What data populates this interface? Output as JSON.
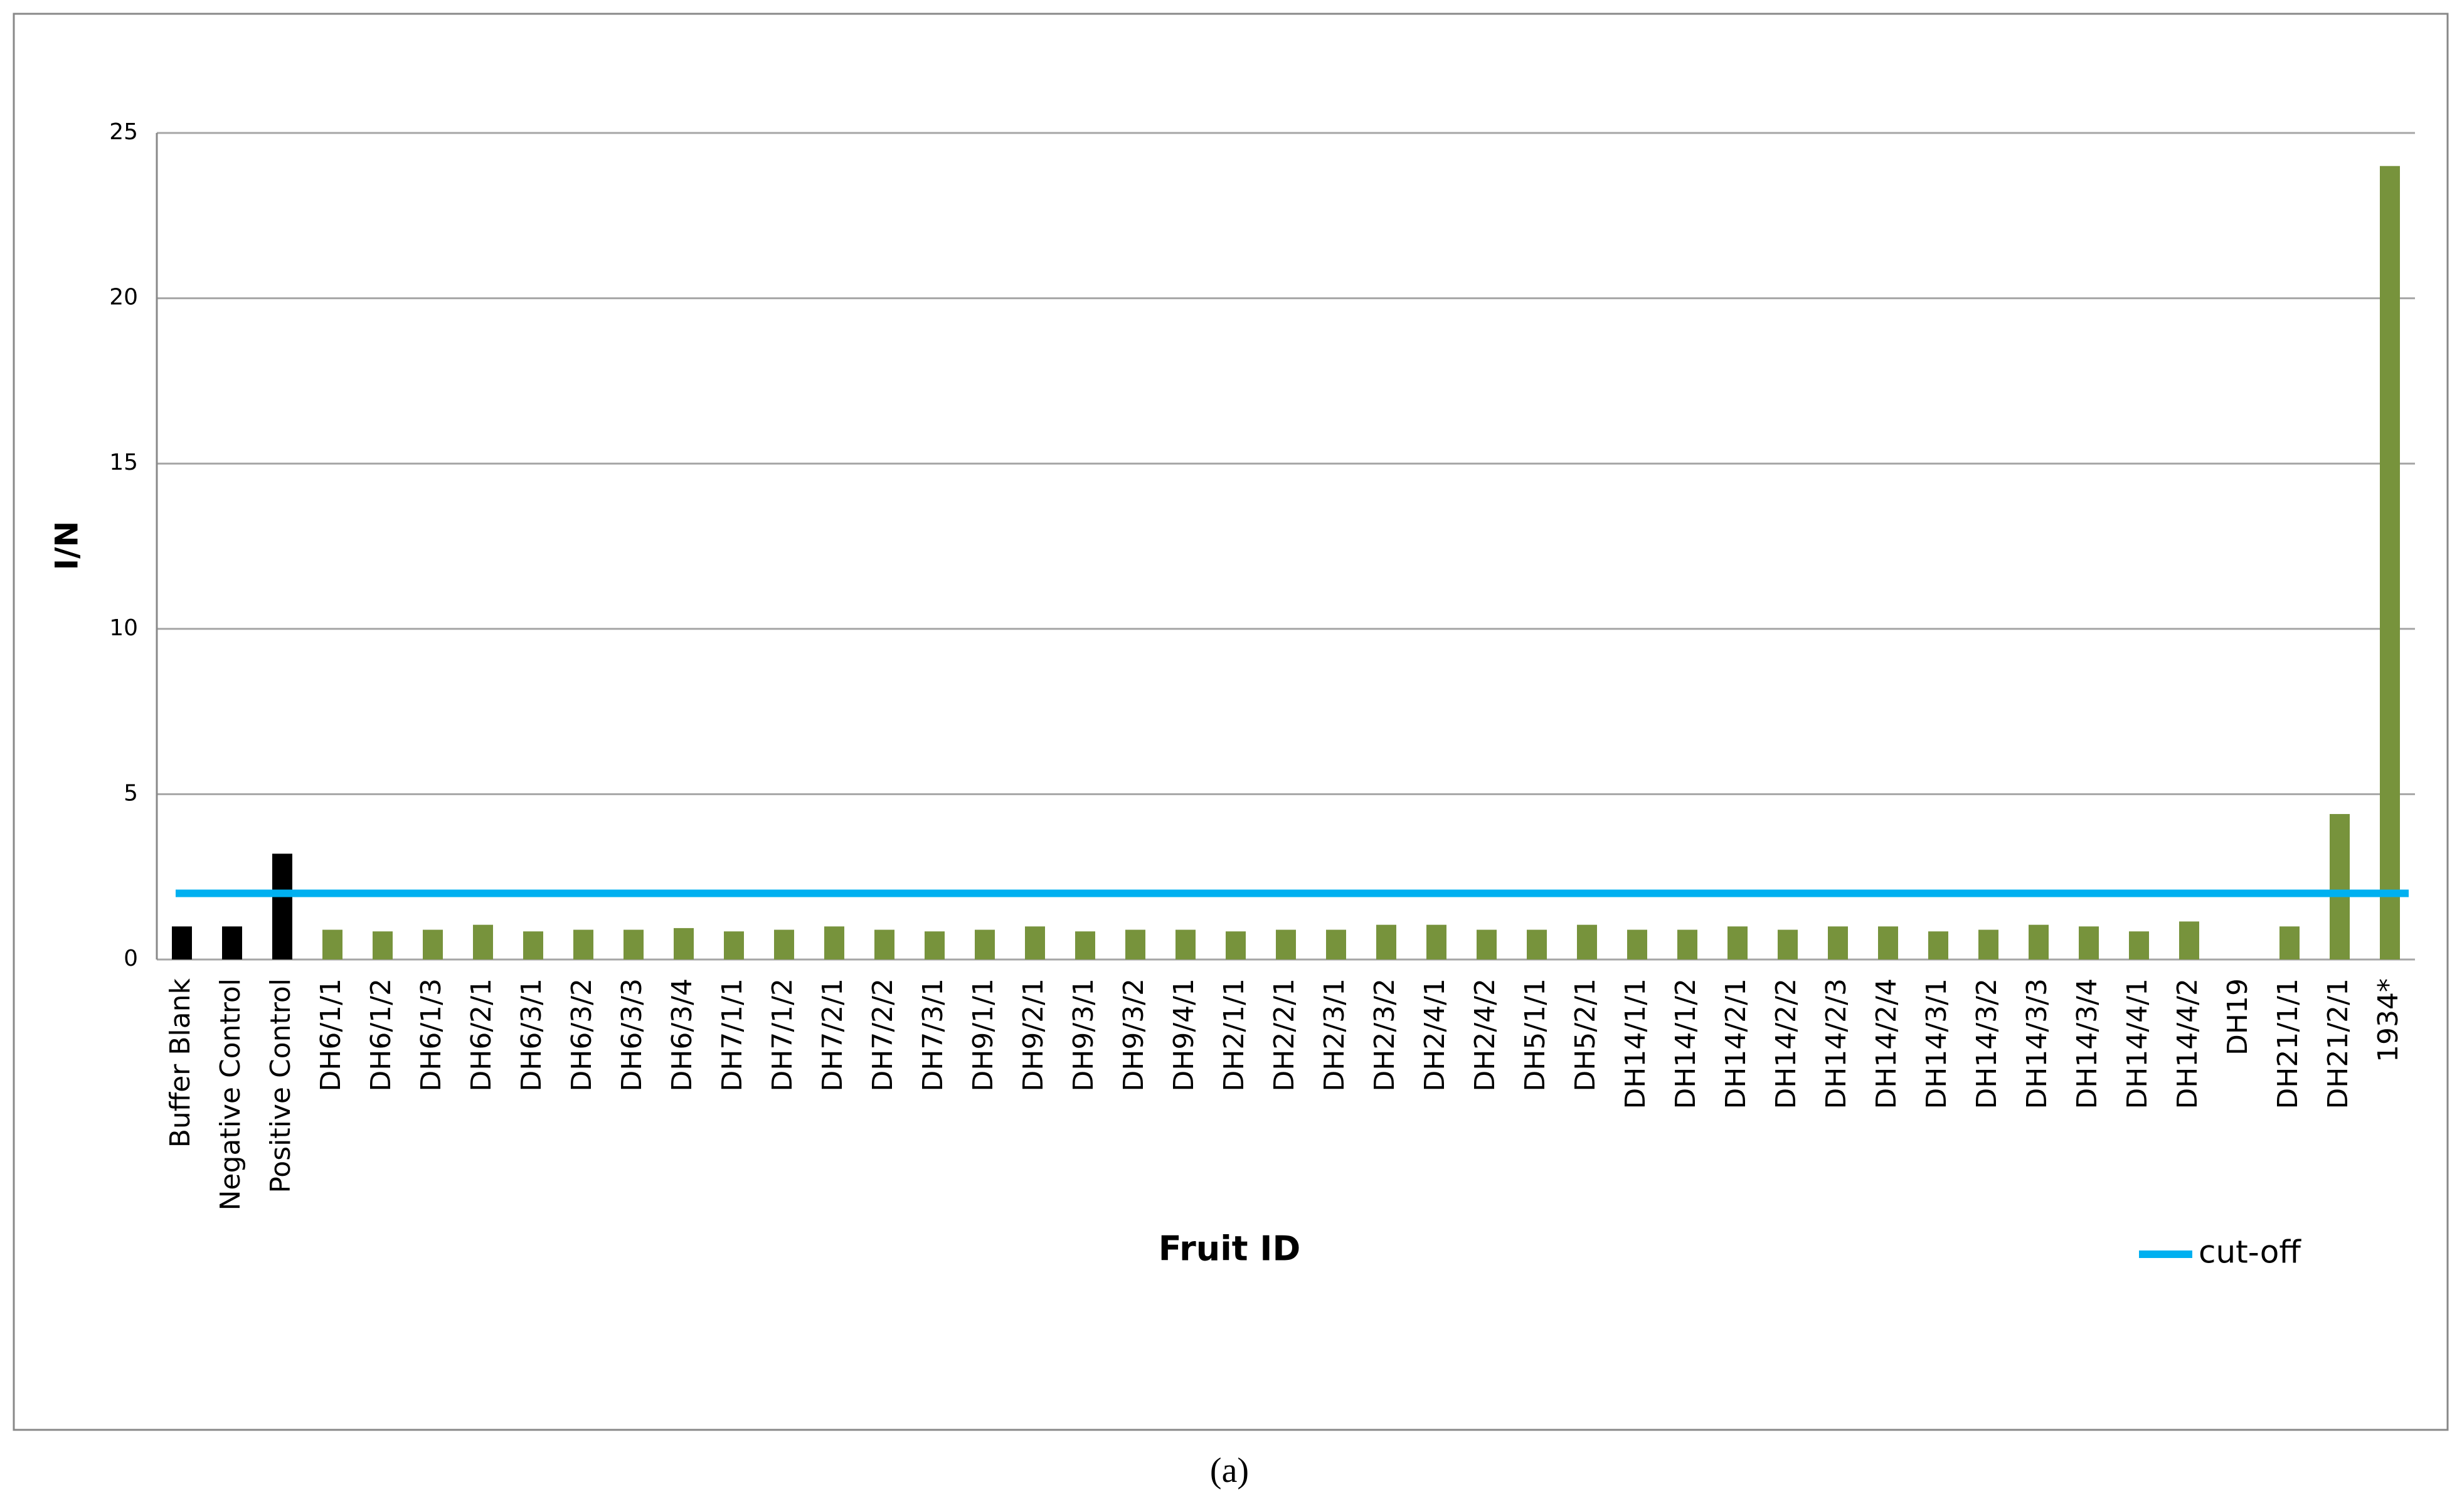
{
  "chart_data": {
    "type": "bar",
    "categories": [
      "Buffer Blank",
      "Negative Control",
      "Positive Control",
      "DH6/1/1",
      "DH6/1/2",
      "DH6/1/3",
      "DH6/2/1",
      "DH6/3/1",
      "DH6/3/2",
      "DH6/3/3",
      "DH6/3/4",
      "DH7/1/1",
      "DH7/1/2",
      "DH7/2/1",
      "DH7/2/2",
      "DH7/3/1",
      "DH9/1/1",
      "DH9/2/1",
      "DH9/3/1",
      "DH9/3/2",
      "DH9/4/1",
      "DH2/1/1",
      "DH2/2/1",
      "DH2/3/1",
      "DH2/3/2",
      "DH2/4/1",
      "DH2/4/2",
      "DH5/1/1",
      "DH5/2/1",
      "DH14/1/1",
      "DH14/1/2",
      "DH14/2/1",
      "DH14/2/2",
      "DH14/2/3",
      "DH14/2/4",
      "DH14/3/1",
      "DH14/3/2",
      "DH14/3/3",
      "DH14/3/4",
      "DH14/4/1",
      "DH14/4/2",
      "DH19",
      "DH21/1/1",
      "DH21/2/1",
      "1934*"
    ],
    "values": [
      1.0,
      1.0,
      3.2,
      0.9,
      0.85,
      0.9,
      1.05,
      0.85,
      0.9,
      0.9,
      0.95,
      0.85,
      0.9,
      1.0,
      0.9,
      0.85,
      0.9,
      1.0,
      0.85,
      0.9,
      0.9,
      0.85,
      0.9,
      0.9,
      1.05,
      1.05,
      0.9,
      0.9,
      1.05,
      0.9,
      0.9,
      1.0,
      0.9,
      1.0,
      1.0,
      0.85,
      0.9,
      1.05,
      1.0,
      0.85,
      1.15,
      null,
      1.0,
      4.4,
      24.0
    ],
    "colors": [
      "#000000",
      "#000000",
      "#000000",
      "#77933c",
      "#77933c",
      "#77933c",
      "#77933c",
      "#77933c",
      "#77933c",
      "#77933c",
      "#77933c",
      "#77933c",
      "#77933c",
      "#77933c",
      "#77933c",
      "#77933c",
      "#77933c",
      "#77933c",
      "#77933c",
      "#77933c",
      "#77933c",
      "#77933c",
      "#77933c",
      "#77933c",
      "#77933c",
      "#77933c",
      "#77933c",
      "#77933c",
      "#77933c",
      "#77933c",
      "#77933c",
      "#77933c",
      "#77933c",
      "#77933c",
      "#77933c",
      "#77933c",
      "#77933c",
      "#77933c",
      "#77933c",
      "#77933c",
      "#77933c",
      "#77933c",
      "#77933c",
      "#77933c",
      "#77933c"
    ],
    "reference_lines": [
      {
        "name": "cut-off",
        "color": "#00b0f0",
        "value": 2
      }
    ],
    "x_label": "Fruit ID",
    "y_label": "I/N",
    "ylim": [
      0,
      25
    ],
    "yticks": [
      0,
      5,
      10,
      15,
      20,
      25
    ],
    "grid": true,
    "caption": "(a)"
  }
}
